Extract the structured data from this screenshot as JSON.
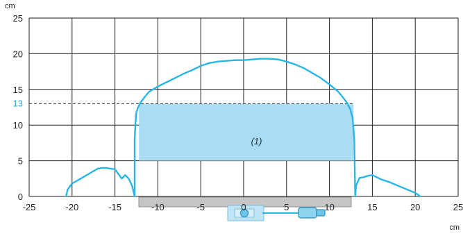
{
  "chart_data": {
    "type": "line",
    "x_unit": "cm",
    "y_unit": "cm",
    "xlim": [
      -25,
      25
    ],
    "ylim": [
      0,
      25
    ],
    "x_ticks": [
      -25,
      -20,
      -15,
      -10,
      -5,
      0,
      5,
      10,
      15,
      20,
      25
    ],
    "y_ticks": [
      0,
      5,
      10,
      15,
      20,
      25
    ],
    "grid": true,
    "threshold": {
      "y": 13,
      "label": "13",
      "style": "dashed"
    },
    "zone": {
      "x": [
        -12.2,
        12.8
      ],
      "y": [
        5,
        13
      ],
      "label": "(1)"
    },
    "detection_curve": {
      "x": [
        -20.7,
        -20.5,
        -20,
        -19,
        -18,
        -17,
        -16.5,
        -16,
        -15,
        -14.2,
        -13.8,
        -13.4,
        -13,
        -12.7,
        -12.7,
        -12.6,
        -12.5,
        -12.3,
        -12,
        -11.5,
        -11,
        -10,
        -9,
        -8,
        -7,
        -6,
        -5,
        -4,
        -3,
        -2,
        -1,
        0,
        1,
        2,
        3,
        4,
        5,
        6,
        7,
        8,
        9,
        10,
        10.5,
        11,
        11.5,
        12,
        12.4,
        12.7,
        12.9,
        13,
        13.1,
        13.5,
        14,
        14.5,
        15,
        15.5,
        16,
        17,
        18,
        19,
        20,
        20.6
      ],
      "y": [
        0,
        1,
        1.8,
        2.5,
        3.2,
        3.9,
        4,
        4,
        3.8,
        2.5,
        3,
        2.5,
        1.5,
        0,
        8,
        10.5,
        11.8,
        12.5,
        13.2,
        14,
        14.7,
        15.4,
        16,
        16.6,
        17.2,
        17.7,
        18.3,
        18.7,
        18.9,
        19,
        19.1,
        19.1,
        19.2,
        19.3,
        19.3,
        19.2,
        18.9,
        18.5,
        18,
        17.3,
        16.6,
        15.7,
        15.2,
        14.7,
        14,
        13.2,
        12.3,
        11,
        8,
        0,
        1.5,
        2.6,
        2.7,
        2.9,
        3,
        2.7,
        2.4,
        2,
        1.5,
        1,
        0.5,
        0
      ]
    },
    "accent_color": "#29b6e6",
    "zone_color": "#aadcf4",
    "threshold_label_color": "#29a3d6"
  }
}
